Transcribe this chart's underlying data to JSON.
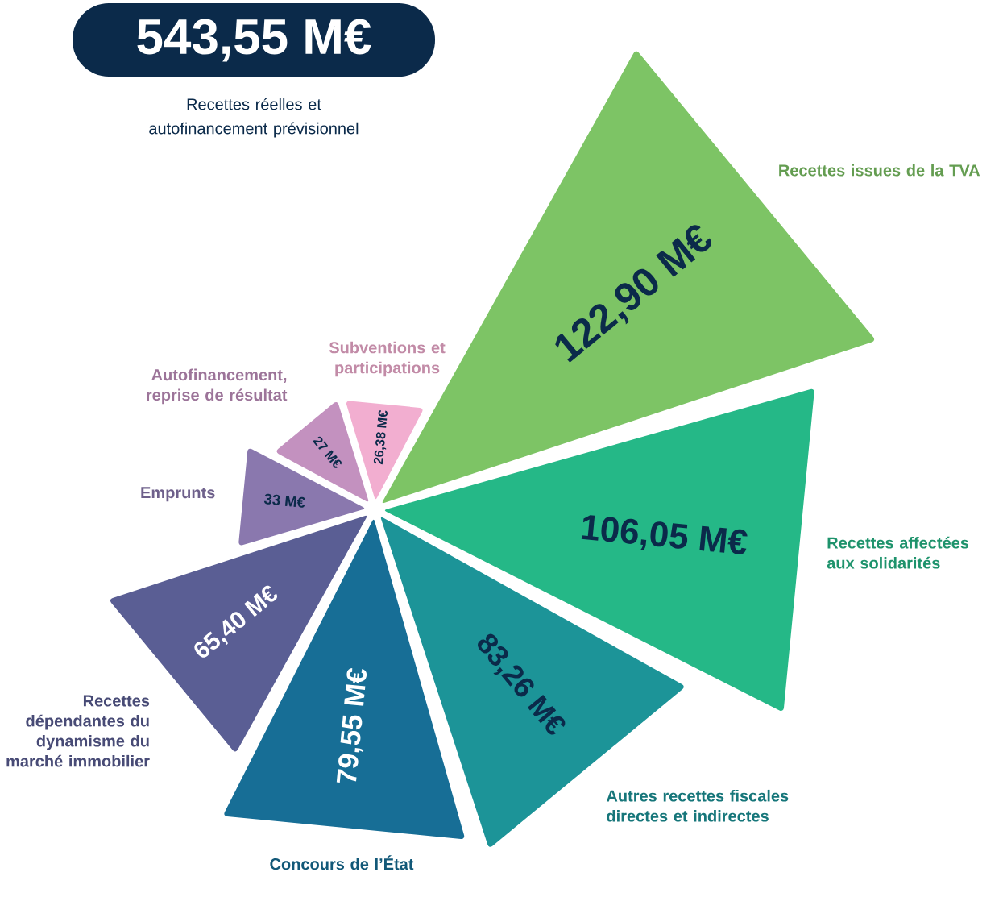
{
  "chart_data": {
    "type": "other",
    "title": "543,55 M€",
    "subtitle": "Recettes réelles et autofinancement prévisionnel",
    "categories": [
      "Recettes issues de la TVA",
      "Recettes affectées aux solidarités",
      "Autres recettes fiscales directes et indirectes",
      "Concours de l’État",
      "Recettes dépendantes du dynamisme du marché immobilier",
      "Emprunts",
      "Autofinancement, reprise de résultat",
      "Subventions et participations"
    ],
    "values": [
      122.9,
      106.05,
      83.26,
      79.55,
      65.4,
      33,
      27,
      26.38
    ],
    "value_labels": [
      "122,90 M€",
      "106,05 M€",
      "83,26 M€",
      "79,55 M€",
      "65,40 M€",
      "33 M€",
      "27 M€",
      "26,38 M€"
    ],
    "colors": [
      "#7dc465",
      "#25b887",
      "#1c9498",
      "#176e96",
      "#5a5e94",
      "#8a78ae",
      "#c391bf",
      "#f2aed0"
    ]
  }
}
